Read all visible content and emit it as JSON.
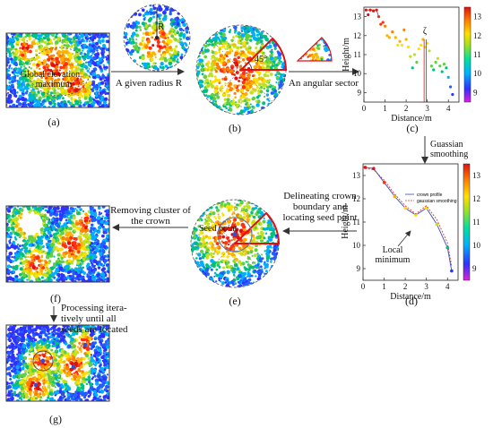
{
  "panels": {
    "a": {
      "label": "(a)",
      "annotation_line1": "Global elevation",
      "annotation_line2": "maximum"
    },
    "b": {
      "label": "(b)",
      "radius_label": "R",
      "angle_label": "45°"
    },
    "c": {
      "label": "(c)"
    },
    "d": {
      "label": "(d)",
      "annotation_line1": "Local",
      "annotation_line2": "minimum"
    },
    "e": {
      "label": "(e)",
      "seed_label": "Seed point"
    },
    "f": {
      "label": "(f)"
    },
    "g": {
      "label": "(g)"
    }
  },
  "arrows": {
    "a_to_b": "A given radius R",
    "b_to_c": "An angular sector",
    "c_to_d": [
      "Guassian",
      "smoothing"
    ],
    "d_to_e": [
      "Delineating crown",
      "boundary and",
      "locating seed point"
    ],
    "e_to_f": [
      "Removing cluster of",
      "the crown"
    ],
    "f_to_g": [
      "Processing itera-",
      "tively until all",
      "seeds are located"
    ]
  },
  "chart_data": [
    {
      "type": "scatter",
      "panel": "c",
      "xlabel": "Distance/m",
      "ylabel": "Height/m",
      "xlim": [
        0,
        4.5
      ],
      "ylim": [
        8.5,
        13.5
      ],
      "xticks": [
        0,
        1,
        2,
        3,
        4
      ],
      "yticks": [
        9,
        10,
        11,
        12,
        13
      ],
      "colorbar_ticks": [
        9,
        10,
        11,
        12,
        13
      ],
      "annotation": "ζ",
      "points": [
        {
          "x": 0.1,
          "y": 13.35
        },
        {
          "x": 0.2,
          "y": 13.1
        },
        {
          "x": 0.3,
          "y": 13.35
        },
        {
          "x": 0.45,
          "y": 13.3
        },
        {
          "x": 0.6,
          "y": 13.35
        },
        {
          "x": 0.7,
          "y": 13.0
        },
        {
          "x": 0.8,
          "y": 12.6
        },
        {
          "x": 0.9,
          "y": 12.7
        },
        {
          "x": 1.0,
          "y": 12.5
        },
        {
          "x": 1.1,
          "y": 12.0
        },
        {
          "x": 1.2,
          "y": 11.9
        },
        {
          "x": 1.35,
          "y": 12.2
        },
        {
          "x": 1.5,
          "y": 11.9
        },
        {
          "x": 1.6,
          "y": 11.5
        },
        {
          "x": 1.7,
          "y": 11.7
        },
        {
          "x": 1.8,
          "y": 11.5
        },
        {
          "x": 1.9,
          "y": 12.3
        },
        {
          "x": 2.0,
          "y": 11.8
        },
        {
          "x": 2.1,
          "y": 11.4
        },
        {
          "x": 2.2,
          "y": 10.9
        },
        {
          "x": 2.3,
          "y": 10.3
        },
        {
          "x": 2.4,
          "y": 11.0
        },
        {
          "x": 2.5,
          "y": 10.6
        },
        {
          "x": 2.6,
          "y": 11.3
        },
        {
          "x": 2.7,
          "y": 11.5
        },
        {
          "x": 2.8,
          "y": 11.8
        },
        {
          "x": 2.9,
          "y": 11.4
        },
        {
          "x": 3.0,
          "y": 11.6
        },
        {
          "x": 3.1,
          "y": 11.2
        },
        {
          "x": 3.2,
          "y": 10.4
        },
        {
          "x": 3.3,
          "y": 10.2
        },
        {
          "x": 3.4,
          "y": 10.6
        },
        {
          "x": 3.5,
          "y": 10.8
        },
        {
          "x": 3.6,
          "y": 10.4
        },
        {
          "x": 3.7,
          "y": 10.1
        },
        {
          "x": 3.8,
          "y": 10.5
        },
        {
          "x": 3.9,
          "y": 10.3
        },
        {
          "x": 4.0,
          "y": 9.8
        },
        {
          "x": 4.1,
          "y": 9.3
        },
        {
          "x": 4.2,
          "y": 8.9
        }
      ]
    },
    {
      "type": "line",
      "panel": "d",
      "xlabel": "Distance/m",
      "ylabel": "Height/m",
      "xlim": [
        0,
        4.5
      ],
      "ylim": [
        8.5,
        13.5
      ],
      "xticks": [
        0,
        1,
        2,
        3,
        4
      ],
      "yticks": [
        9,
        10,
        11,
        12,
        13
      ],
      "colorbar_ticks": [
        9,
        10,
        11,
        12,
        13
      ],
      "x": [
        0.1,
        0.5,
        1.0,
        1.5,
        2.0,
        2.5,
        3.0,
        3.5,
        4.0,
        4.2
      ],
      "series": [
        {
          "name": "crown profile",
          "color": "#3a4fb0",
          "values": [
            13.35,
            13.3,
            12.7,
            12.1,
            11.6,
            11.3,
            11.6,
            10.9,
            9.9,
            8.9
          ]
        },
        {
          "name": "gaussian smoothing",
          "color": "#d23b3b",
          "values": [
            13.3,
            13.25,
            12.8,
            12.2,
            11.7,
            11.35,
            11.7,
            11.1,
            10.1,
            9.1
          ]
        }
      ]
    }
  ],
  "colors": {
    "colorbar": [
      "#e020e0",
      "#3030ff",
      "#00b0ff",
      "#00e0a0",
      "#a0e020",
      "#ffe000",
      "#ff8000",
      "#e01010"
    ],
    "sector": "#e01010",
    "seed": "#3050d0",
    "arrow": "#333333"
  }
}
